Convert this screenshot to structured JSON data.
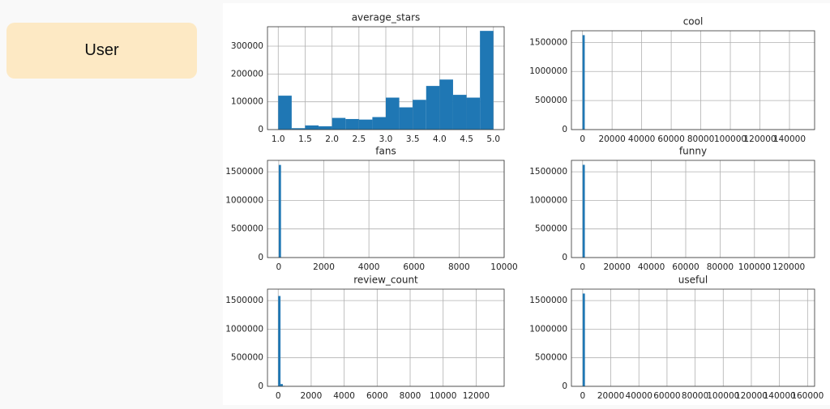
{
  "label": "User",
  "chart_data": [
    {
      "type": "histogram",
      "title": "average_stars",
      "color": "#1f77b4",
      "grid": true,
      "bins": [
        1.0,
        1.25,
        1.5,
        1.75,
        2.0,
        2.25,
        2.5,
        2.75,
        3.0,
        3.25,
        3.5,
        3.75,
        4.0,
        4.25,
        4.5,
        4.75,
        5.0
      ],
      "counts": [
        122000,
        5000,
        15000,
        12000,
        42000,
        38000,
        36000,
        45000,
        115000,
        80000,
        107000,
        157000,
        180000,
        125000,
        115000,
        355000
      ],
      "xlim": [
        0.8,
        5.2
      ],
      "ylim": [
        0,
        370000
      ],
      "xticks": [
        {
          "value": 1,
          "label": "1.0"
        },
        1.5,
        {
          "value": 2,
          "label": "2.0"
        },
        2.5,
        {
          "value": 3,
          "label": "3.0"
        },
        3.5,
        {
          "value": 4,
          "label": "4.0"
        },
        4.5,
        {
          "value": 5,
          "label": "5.0"
        }
      ],
      "yticks": [
        0,
        100000,
        200000,
        300000
      ]
    },
    {
      "type": "histogram",
      "title": "cool",
      "color": "#1f77b4",
      "grid": true,
      "bins": [
        0,
        1500,
        3000
      ],
      "counts": [
        1625000,
        500
      ],
      "xlim": [
        -7500,
        157000
      ],
      "ylim": [
        0,
        1700000
      ],
      "xticks": [
        0,
        20000,
        40000,
        60000,
        80000,
        100000,
        120000,
        140000
      ],
      "yticks": [
        0,
        500000,
        1000000,
        1500000
      ]
    },
    {
      "type": "histogram",
      "title": "fans",
      "color": "#1f77b4",
      "grid": true,
      "bins": [
        0,
        100,
        200
      ],
      "counts": [
        1620000,
        2000
      ],
      "xlim": [
        -500,
        10000
      ],
      "ylim": [
        0,
        1700000
      ],
      "xticks": [
        0,
        2000,
        4000,
        6000,
        8000,
        10000
      ],
      "yticks": [
        0,
        500000,
        1000000,
        1500000
      ]
    },
    {
      "type": "histogram",
      "title": "funny",
      "color": "#1f77b4",
      "grid": true,
      "bins": [
        0,
        1300,
        2600
      ],
      "counts": [
        1622000,
        500
      ],
      "xlim": [
        -6500,
        135000
      ],
      "ylim": [
        0,
        1700000
      ],
      "xticks": [
        0,
        20000,
        40000,
        60000,
        80000,
        100000,
        120000
      ],
      "yticks": [
        0,
        500000,
        1000000,
        1500000
      ]
    },
    {
      "type": "histogram",
      "title": "review_count",
      "color": "#1f77b4",
      "grid": true,
      "bins": [
        0,
        140,
        280,
        420
      ],
      "counts": [
        1580000,
        40000,
        8000
      ],
      "xlim": [
        -650,
        13700
      ],
      "ylim": [
        0,
        1700000
      ],
      "xticks": [
        0,
        2000,
        4000,
        6000,
        8000,
        10000,
        12000
      ],
      "yticks": [
        0,
        500000,
        1000000,
        1500000
      ]
    },
    {
      "type": "histogram",
      "title": "useful",
      "color": "#1f77b4",
      "grid": true,
      "bins": [
        0,
        1600,
        3200
      ],
      "counts": [
        1623000,
        500
      ],
      "xlim": [
        -8000,
        165000
      ],
      "ylim": [
        0,
        1700000
      ],
      "xticks": [
        0,
        20000,
        40000,
        60000,
        80000,
        100000,
        120000,
        140000,
        160000
      ],
      "yticks": [
        0,
        500000,
        1000000,
        1500000
      ]
    }
  ]
}
